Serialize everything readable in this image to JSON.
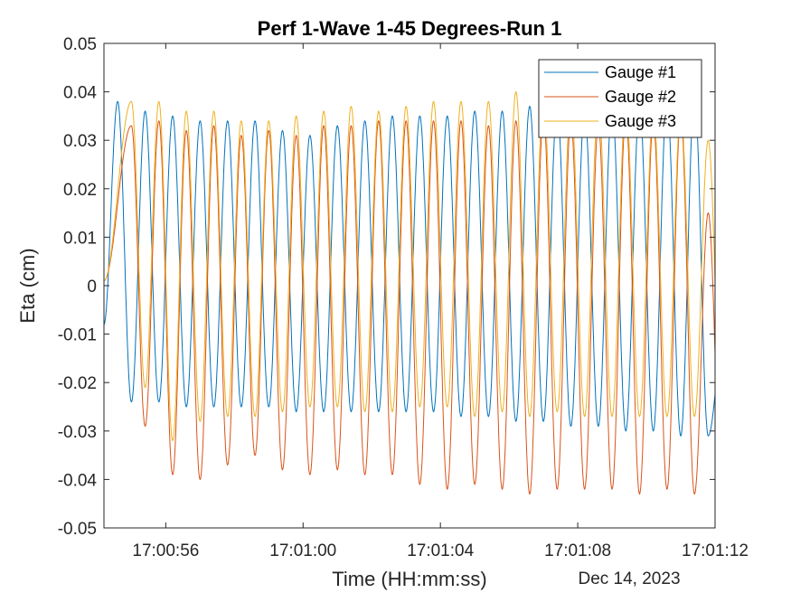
{
  "chart_data": {
    "type": "line",
    "title": "Perf 1-Wave 1-45 Degrees-Run 1",
    "xlabel": "Time (HH:mm:ss)",
    "x_secondary_label": "Dec 14, 2023",
    "ylabel": "Eta (cm)",
    "xlim": [
      "17:00:54.2",
      "17:01:12.0"
    ],
    "ylim": [
      -0.05,
      0.05
    ],
    "x_ticks": [
      "17:00:56",
      "17:01:00",
      "17:01:04",
      "17:01:08",
      "17:01:12"
    ],
    "y_ticks": [
      0.05,
      0.04,
      0.03,
      0.02,
      0.01,
      0,
      -0.01,
      -0.02,
      -0.03,
      -0.04,
      -0.05
    ],
    "y_tick_labels": [
      "0.05",
      "0.04",
      "0.03",
      "0.02",
      "0.01",
      "0",
      "-0.01",
      "-0.02",
      "-0.03",
      "-0.04",
      "-0.05"
    ],
    "grid": false,
    "legend_position": "top-right",
    "wave_period_s": 0.8,
    "series": [
      {
        "name": "Gauge #1",
        "color": "#0072BD",
        "start_value": -0.008,
        "first_crest_time": "17:00:54.6",
        "crest_times": [
          "17:00:54.6",
          "17:00:55.4",
          "17:00:56.2",
          "17:00:57.0",
          "17:00:57.8",
          "17:00:58.6",
          "17:00:59.4",
          "17:01:00.2",
          "17:01:01.0",
          "17:01:01.8",
          "17:01:02.6",
          "17:01:03.4",
          "17:01:04.2",
          "17:01:05.0",
          "17:01:05.8",
          "17:01:06.6",
          "17:01:07.4",
          "17:01:08.2",
          "17:01:09.0",
          "17:01:09.8",
          "17:01:10.6",
          "17:01:11.4"
        ],
        "crests": [
          0.038,
          0.036,
          0.035,
          0.034,
          0.034,
          0.034,
          0.032,
          0.031,
          0.033,
          0.034,
          0.035,
          0.035,
          0.035,
          0.036,
          0.036,
          0.037,
          0.037,
          0.036,
          0.037,
          0.037,
          0.038,
          0.039
        ],
        "troughs": [
          -0.024,
          -0.024,
          -0.025,
          -0.025,
          -0.025,
          -0.025,
          -0.026,
          -0.026,
          -0.026,
          -0.026,
          -0.026,
          -0.026,
          -0.027,
          -0.027,
          -0.028,
          -0.028,
          -0.029,
          -0.029,
          -0.03,
          -0.03,
          -0.031,
          -0.031
        ],
        "end_value": -0.014
      },
      {
        "name": "Gauge #2",
        "color": "#D95319",
        "start_value": 0.001,
        "first_crest_time": "17:00:55.0",
        "crest_times": [
          "17:00:55.0",
          "17:00:55.8",
          "17:00:56.6",
          "17:00:57.4",
          "17:00:58.2",
          "17:00:59.0",
          "17:00:59.8",
          "17:01:00.6",
          "17:01:01.4",
          "17:01:02.2",
          "17:01:03.0",
          "17:01:03.8",
          "17:01:04.6",
          "17:01:05.4",
          "17:01:06.2",
          "17:01:07.0",
          "17:01:07.8",
          "17:01:08.6",
          "17:01:09.4",
          "17:01:10.2",
          "17:01:11.0",
          "17:01:11.8"
        ],
        "crests": [
          0.033,
          0.034,
          0.032,
          0.033,
          0.031,
          0.032,
          0.031,
          0.033,
          0.033,
          0.034,
          0.034,
          0.034,
          0.034,
          0.033,
          0.034,
          0.035,
          0.034,
          0.033,
          0.035,
          0.034,
          0.035,
          0.015
        ],
        "troughs": [
          -0.029,
          -0.039,
          -0.04,
          -0.037,
          -0.035,
          -0.038,
          -0.039,
          -0.038,
          -0.039,
          -0.039,
          -0.041,
          -0.042,
          -0.041,
          -0.042,
          -0.043,
          -0.042,
          -0.042,
          -0.042,
          -0.043,
          -0.042,
          -0.043,
          -0.043
        ],
        "end_value": 0.015
      },
      {
        "name": "Gauge #3",
        "color": "#EDB120",
        "start_value": 0.001,
        "first_crest_time": "17:00:55.0",
        "crest_times": [
          "17:00:55.0",
          "17:00:55.8",
          "17:00:56.6",
          "17:00:57.4",
          "17:00:58.2",
          "17:00:59.0",
          "17:00:59.8",
          "17:01:00.6",
          "17:01:01.4",
          "17:01:02.2",
          "17:01:03.0",
          "17:01:03.8",
          "17:01:04.6",
          "17:01:05.4",
          "17:01:06.2",
          "17:01:07.0",
          "17:01:07.8",
          "17:01:08.6",
          "17:01:09.4",
          "17:01:10.2",
          "17:01:11.0",
          "17:01:11.8"
        ],
        "crests": [
          0.038,
          0.038,
          0.036,
          0.036,
          0.034,
          0.034,
          0.035,
          0.036,
          0.037,
          0.036,
          0.037,
          0.038,
          0.038,
          0.038,
          0.04,
          0.039,
          0.038,
          0.038,
          0.038,
          0.036,
          0.036,
          0.03
        ],
        "troughs": [
          -0.021,
          -0.032,
          -0.028,
          -0.027,
          -0.027,
          -0.026,
          -0.025,
          -0.025,
          -0.026,
          -0.026,
          -0.025,
          -0.025,
          -0.027,
          -0.026,
          -0.027,
          -0.026,
          -0.027,
          -0.027,
          -0.027,
          -0.027,
          -0.027,
          -0.028
        ],
        "end_value": 0.03
      }
    ]
  }
}
